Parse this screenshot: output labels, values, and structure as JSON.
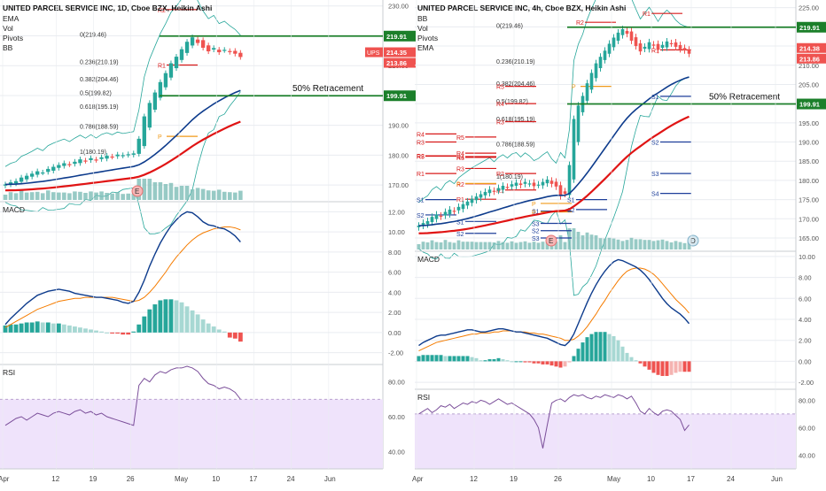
{
  "colors": {
    "up": "#26a69a",
    "down": "#ef5350",
    "ema_fast": "#0d3b8c",
    "ema_slow": "#e01414",
    "macd_line": "#0d3b8c",
    "signal_line": "#f57c00",
    "rsi_line": "#7b4f9a",
    "rsi_band": "#efe3fb",
    "green_level": "#1b7f2a",
    "fib_label": "#333333",
    "pivot_r": "#d81b1b",
    "pivot_s": "#1e3f9a",
    "pivot_p": "#f09a1a",
    "vol": "#7dbdb7",
    "bb": "#26a69a",
    "grid": "#e9ecf0"
  },
  "chart_data": [
    {
      "type": "candlestick",
      "panel": "left",
      "title": "UNITED PARCEL SERVICE INC, 1D, Cboe BZX, Heikin Ashi",
      "indicators": [
        "EMA",
        "Vol",
        "Pivots",
        "BB"
      ],
      "price_ylim": [
        165,
        232
      ],
      "price_ticks": [
        170,
        180,
        190,
        200,
        210,
        220,
        230
      ],
      "x_ticks": [
        "Apr",
        "12",
        "19",
        "26",
        "May",
        "10",
        "17",
        "24",
        "Jun"
      ],
      "x_tick_pos": [
        0,
        10,
        17,
        24,
        33,
        40,
        47,
        54,
        61
      ],
      "candles_close": [
        170.2,
        170.9,
        171.3,
        172.5,
        173.1,
        173.8,
        174.6,
        174.2,
        175.4,
        176.1,
        176.7,
        177.3,
        176.9,
        177.8,
        178.6,
        178.1,
        179.0,
        178.4,
        179.3,
        179.8,
        179.5,
        180.2,
        180.0,
        180.3,
        180.6,
        185.5,
        193.0,
        197.5,
        201.0,
        204.5,
        207.5,
        210.8,
        213.0,
        215.5,
        218.0,
        219.5,
        217.6,
        216.0,
        214.8,
        215.9,
        214.5,
        215.3,
        214.6,
        214.0,
        212.9
      ],
      "last_price": "214.35",
      "last_price_2": "213.86",
      "ticker": "UPS",
      "levels": [
        {
          "label": "219.91",
          "value": 219.91,
          "kind": "green"
        },
        {
          "label": "199.91",
          "value": 199.91,
          "kind": "green"
        }
      ],
      "annotation": "50% Retracement",
      "fib_labels": [
        {
          "label": "0(219.46)",
          "value": 219.46
        },
        {
          "label": "0.236(210.19)",
          "value": 210.19
        },
        {
          "label": "0.382(204.46)",
          "value": 204.46
        },
        {
          "label": "0.5(199.82)",
          "value": 199.82
        },
        {
          "label": "0.618(195.19)",
          "value": 195.19
        },
        {
          "label": "0.786(188.59)",
          "value": 188.59
        },
        {
          "label": "1(180.19)",
          "value": 180.19
        }
      ],
      "pivot_labels": [
        {
          "label": "R2",
          "value": 228.8
        },
        {
          "label": "R1",
          "value": 210.2
        },
        {
          "label": "P",
          "value": 186.3
        }
      ],
      "event_badge": "E",
      "macd": {
        "label": "MACD",
        "ylim": [
          -3,
          13
        ],
        "ticks": [
          -2,
          0,
          2,
          4,
          6,
          8,
          10,
          12
        ],
        "macd_line": [
          0.8,
          1.4,
          1.9,
          2.4,
          2.9,
          3.3,
          3.7,
          3.9,
          4.1,
          4.2,
          4.3,
          4.2,
          4.1,
          3.9,
          3.8,
          3.7,
          3.6,
          3.5,
          3.5,
          3.4,
          3.3,
          3.2,
          3.0,
          2.9,
          3.1,
          4.0,
          5.2,
          6.6,
          7.8,
          8.9,
          9.8,
          10.6,
          11.2,
          11.7,
          12.0,
          11.9,
          11.5,
          11.0,
          10.7,
          10.6,
          10.4,
          10.3,
          10.0,
          9.6,
          9.0
        ],
        "signal_line": [
          0.5,
          0.8,
          1.1,
          1.4,
          1.7,
          2.0,
          2.3,
          2.5,
          2.7,
          2.9,
          3.1,
          3.2,
          3.3,
          3.4,
          3.4,
          3.5,
          3.5,
          3.5,
          3.5,
          3.5,
          3.5,
          3.4,
          3.3,
          3.2,
          3.1,
          3.2,
          3.5,
          4.0,
          4.6,
          5.3,
          6.0,
          6.8,
          7.5,
          8.1,
          8.7,
          9.2,
          9.6,
          9.9,
          10.1,
          10.3,
          10.4,
          10.5,
          10.5,
          10.4,
          10.2
        ],
        "histogram": [
          0.7,
          0.8,
          0.8,
          0.9,
          1.0,
          1.0,
          1.1,
          1.0,
          1.0,
          0.9,
          0.9,
          0.8,
          0.7,
          0.6,
          0.5,
          0.4,
          0.3,
          0.2,
          0.1,
          0.0,
          -0.1,
          -0.1,
          -0.2,
          -0.2,
          0.1,
          0.8,
          1.6,
          2.3,
          2.8,
          3.2,
          3.3,
          3.3,
          3.2,
          3.0,
          2.6,
          2.2,
          1.8,
          1.3,
          0.9,
          0.6,
          0.3,
          0.1,
          -0.5,
          -0.6,
          -0.9
        ]
      },
      "rsi": {
        "label": "RSI",
        "ylim": [
          30,
          90
        ],
        "ticks": [
          40,
          60,
          80
        ],
        "band": [
          30,
          70
        ],
        "values": [
          55,
          57,
          59,
          60,
          58,
          60,
          62,
          61,
          60,
          62,
          63,
          62,
          61,
          63,
          64,
          62,
          63,
          61,
          62,
          60,
          59,
          58,
          57,
          56,
          55,
          78,
          82,
          80,
          84,
          86,
          85,
          87,
          88,
          88,
          89,
          88,
          86,
          82,
          79,
          78,
          76,
          77,
          76,
          74,
          70
        ]
      }
    },
    {
      "type": "candlestick",
      "panel": "right",
      "title": "UNITED PARCEL SERVICE INC, 4h, Cboe BZX, Heikin Ashi",
      "indicators": [
        "BB",
        "Vol",
        "Pivots",
        "EMA"
      ],
      "price_ylim": [
        162,
        227
      ],
      "price_ticks": [
        165,
        170,
        175,
        180,
        185,
        190,
        195,
        200,
        205,
        210,
        215,
        220,
        225
      ],
      "x_ticks": [
        "Apr",
        "12",
        "19",
        "26",
        "May",
        "10",
        "17",
        "24",
        "Jun"
      ],
      "x_tick_pos": [
        0,
        13,
        22,
        32,
        44,
        53,
        62,
        71,
        81
      ],
      "candles_close": [
        168.2,
        168.9,
        169.4,
        170.5,
        171.1,
        170.6,
        171.8,
        172.4,
        172.0,
        173.1,
        173.8,
        174.5,
        175.2,
        175.8,
        176.4,
        177.0,
        177.6,
        177.1,
        178.0,
        178.6,
        178.2,
        179.0,
        179.4,
        178.8,
        179.6,
        179.2,
        178.5,
        178.9,
        179.6,
        180.2,
        179.1,
        178.4,
        175.9,
        176.5,
        184.0,
        196.0,
        199.5,
        202.0,
        205.3,
        208.0,
        210.5,
        212.2,
        213.8,
        215.6,
        217.2,
        218.5,
        219.4,
        218.2,
        216.4,
        215.0,
        213.6,
        214.8,
        216.0,
        215.1,
        214.0,
        215.3,
        216.2,
        215.7,
        214.8,
        214.2,
        213.9,
        213.0
      ],
      "last_price": "214.38",
      "last_price_2": "213.86",
      "levels": [
        {
          "label": "219.91",
          "value": 219.91,
          "kind": "green"
        },
        {
          "label": "199.91",
          "value": 199.91,
          "kind": "green"
        }
      ],
      "annotation": "50% Retracement",
      "fib_labels": [
        {
          "label": "0(219.46)",
          "value": 219.46
        },
        {
          "label": "0.236(210.19)",
          "value": 210.19
        },
        {
          "label": "0.382(204.46)",
          "value": 204.46
        },
        {
          "label": "0.5(199.82)",
          "value": 199.82
        },
        {
          "label": "0.618(195.19)",
          "value": 195.19
        },
        {
          "label": "0.786(188.59)",
          "value": 188.59
        },
        {
          "label": "1(180.19)",
          "value": 180.19
        }
      ],
      "pivot_labels": [
        {
          "label": "R1",
          "value": 223.5
        },
        {
          "label": "R2",
          "value": 221.2
        },
        {
          "label": "R1",
          "value": 214.0
        },
        {
          "label": "R5",
          "value": 204.5
        },
        {
          "label": "R4",
          "value": 200.0
        },
        {
          "label": "R3",
          "value": 195.3
        },
        {
          "label": "R5",
          "value": 186.3
        },
        {
          "label": "R4",
          "value": 186.2
        },
        {
          "label": "R3",
          "value": 186.0
        },
        {
          "label": "R2",
          "value": 181.8
        },
        {
          "label": "R1",
          "value": 177.5
        },
        {
          "label": "P",
          "value": 174.0
        },
        {
          "label": "S1",
          "value": 172.0
        },
        {
          "label": "S2",
          "value": 166.9
        },
        {
          "label": "S3",
          "value": 165.0
        },
        {
          "label": "R5",
          "value": 191.3
        },
        {
          "label": "R4",
          "value": 187.1
        },
        {
          "label": "R3",
          "value": 183.1
        },
        {
          "label": "R2",
          "value": 179.1
        },
        {
          "label": "R1",
          "value": 175.1
        },
        {
          "label": "P",
          "value": 171.8
        },
        {
          "label": "S1",
          "value": 169.3
        },
        {
          "label": "S2",
          "value": 166.2
        },
        {
          "label": "S1",
          "value": 175.0
        },
        {
          "label": "S2",
          "value": 172.4
        },
        {
          "label": "S3",
          "value": 168.8
        },
        {
          "label": "R4",
          "value": 192.1
        },
        {
          "label": "R3",
          "value": 190.0
        },
        {
          "label": "R2",
          "value": 186.4
        },
        {
          "label": "R1",
          "value": 181.8
        },
        {
          "label": "P",
          "value": 179.2
        },
        {
          "label": "S1",
          "value": 175.0
        },
        {
          "label": "S2",
          "value": 171.0
        },
        {
          "label": "S3",
          "value": 181.8
        },
        {
          "label": "S4",
          "value": 176.6
        },
        {
          "label": "P",
          "value": 204.5
        },
        {
          "label": "S1",
          "value": 201.9
        },
        {
          "label": "S2",
          "value": 190.0
        }
      ],
      "event_badges": [
        "E",
        "D"
      ],
      "macd": {
        "label": "MACD",
        "ylim": [
          -2.5,
          10.5
        ],
        "ticks": [
          -2,
          0,
          2,
          4,
          6,
          8,
          10
        ],
        "macd_line": [
          1.5,
          1.8,
          2.0,
          2.2,
          2.4,
          2.5,
          2.5,
          2.6,
          2.7,
          2.8,
          2.9,
          3.0,
          3.0,
          2.9,
          2.8,
          2.8,
          2.9,
          3.0,
          3.1,
          3.1,
          3.0,
          2.9,
          2.8,
          2.8,
          2.7,
          2.6,
          2.5,
          2.4,
          2.3,
          2.2,
          2.0,
          1.8,
          1.6,
          1.5,
          1.9,
          2.6,
          3.6,
          4.6,
          5.6,
          6.5,
          7.3,
          8.0,
          8.6,
          9.1,
          9.5,
          9.7,
          9.6,
          9.4,
          9.2,
          9.0,
          8.7,
          8.3,
          7.8,
          7.2,
          6.6,
          6.0,
          5.5,
          5.1,
          4.8,
          4.5,
          4.1,
          3.6
        ],
        "signal_line": [
          1.0,
          1.2,
          1.4,
          1.6,
          1.8,
          1.9,
          2.0,
          2.1,
          2.2,
          2.3,
          2.4,
          2.5,
          2.6,
          2.6,
          2.7,
          2.7,
          2.7,
          2.8,
          2.8,
          2.9,
          2.9,
          2.9,
          2.8,
          2.8,
          2.8,
          2.7,
          2.7,
          2.6,
          2.6,
          2.5,
          2.4,
          2.3,
          2.2,
          2.0,
          2.0,
          2.1,
          2.4,
          2.8,
          3.3,
          3.9,
          4.5,
          5.2,
          5.8,
          6.5,
          7.1,
          7.7,
          8.2,
          8.6,
          8.8,
          8.9,
          8.9,
          8.8,
          8.6,
          8.3,
          7.9,
          7.4,
          6.9,
          6.4,
          5.9,
          5.5,
          5.1,
          4.6
        ],
        "histogram": [
          0.5,
          0.6,
          0.6,
          0.6,
          0.6,
          0.6,
          0.5,
          0.5,
          0.5,
          0.5,
          0.5,
          0.5,
          0.4,
          0.3,
          0.1,
          0.1,
          0.2,
          0.2,
          0.3,
          0.2,
          0.1,
          0.0,
          0.0,
          0.0,
          -0.1,
          -0.1,
          -0.2,
          -0.2,
          -0.3,
          -0.3,
          -0.4,
          -0.5,
          -0.6,
          -0.5,
          -0.1,
          0.5,
          1.2,
          1.8,
          2.3,
          2.6,
          2.8,
          2.8,
          2.8,
          2.6,
          2.4,
          2.0,
          1.4,
          0.8,
          0.4,
          0.1,
          -0.2,
          -0.5,
          -0.8,
          -1.1,
          -1.3,
          -1.4,
          -1.4,
          -1.3,
          -1.1,
          -1.0,
          -1.0,
          -1.0
        ]
      },
      "rsi": {
        "label": "RSI",
        "ylim": [
          30,
          88
        ],
        "ticks": [
          40,
          60,
          80
        ],
        "band": [
          30,
          70
        ],
        "values": [
          70,
          72,
          74,
          71,
          73,
          76,
          75,
          77,
          74,
          76,
          78,
          77,
          79,
          78,
          80,
          79,
          77,
          79,
          81,
          79,
          77,
          78,
          76,
          74,
          72,
          70,
          66,
          60,
          45,
          62,
          78,
          80,
          81,
          79,
          82,
          84,
          83,
          84,
          82,
          81,
          83,
          82,
          84,
          83,
          82,
          84,
          83,
          81,
          83,
          78,
          72,
          70,
          74,
          71,
          69,
          72,
          73,
          72,
          69,
          66,
          58,
          62
        ]
      }
    }
  ]
}
